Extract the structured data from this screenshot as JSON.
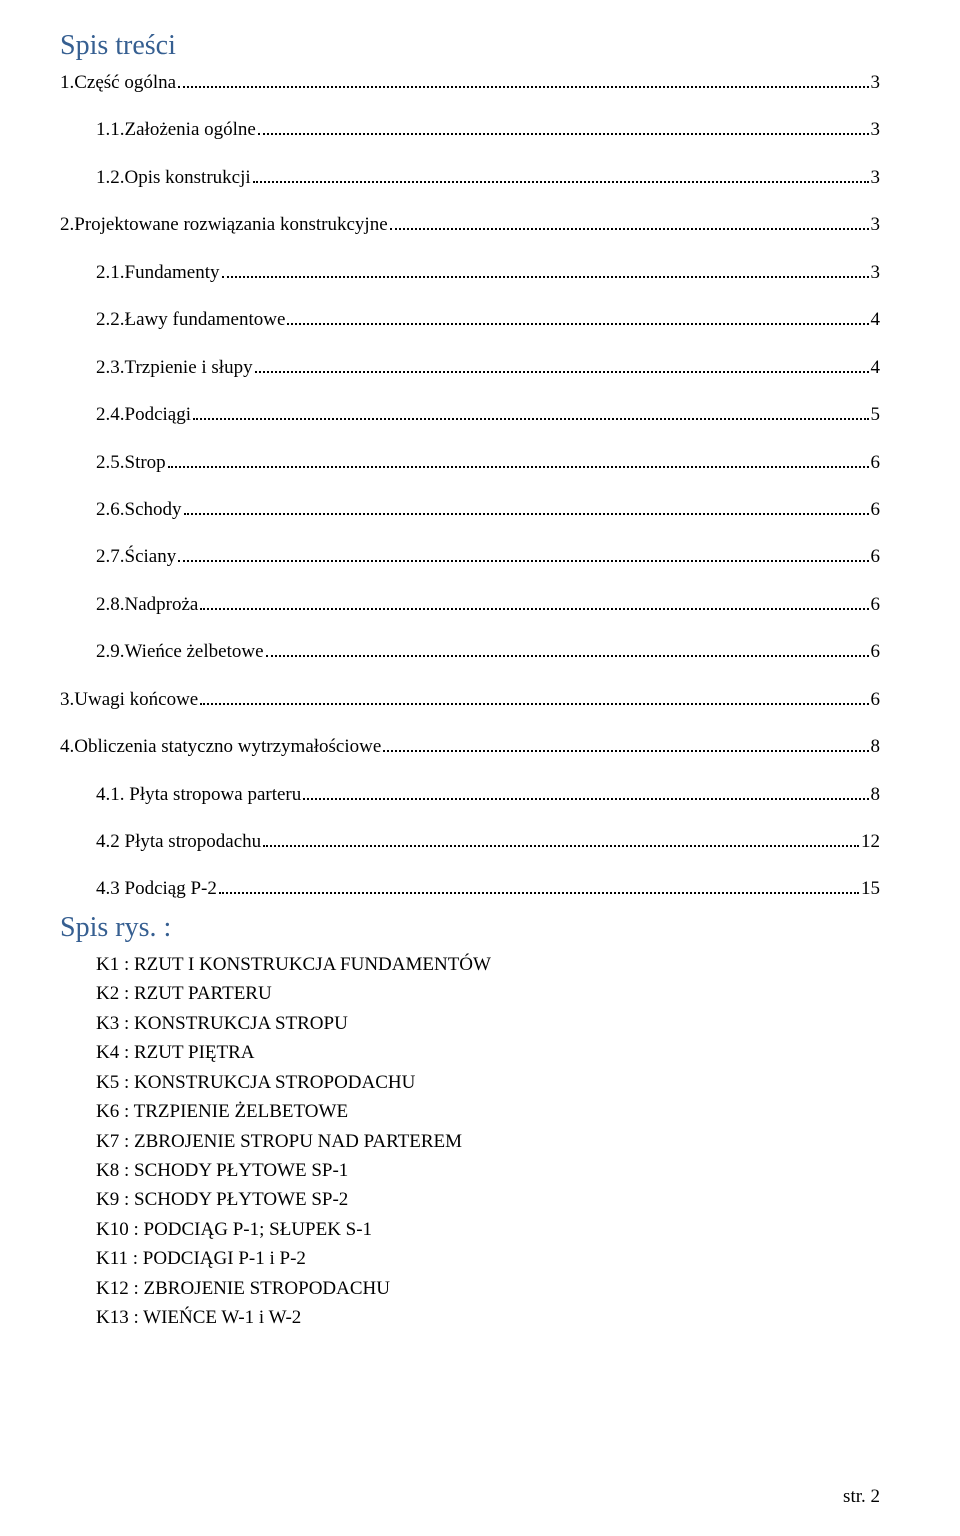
{
  "colors": {
    "heading": "#365f91",
    "text": "#000000",
    "background": "#ffffff",
    "dots": "#000000"
  },
  "typography": {
    "font_family": "Times New Roman",
    "body_fontsize_pt": 14,
    "heading_fontsize_pt": 21
  },
  "headings": {
    "toc": "Spis treści",
    "figures": "Spis rys. :"
  },
  "toc": [
    {
      "indent": 0,
      "label": "1.Część ogólna",
      "page": "3",
      "spacer_after": true
    },
    {
      "indent": 1,
      "label": "1.1.Założenia ogólne",
      "page": "3",
      "spacer_after": true
    },
    {
      "indent": 1,
      "label": "1.2.Opis konstrukcji",
      "page": "3",
      "spacer_after": true
    },
    {
      "indent": 0,
      "label": "2.Projektowane rozwiązania konstrukcyjne",
      "page": "3",
      "spacer_after": true
    },
    {
      "indent": 1,
      "label": "2.1.Fundamenty",
      "page": "3",
      "spacer_after": true
    },
    {
      "indent": 1,
      "label": "2.2.Ławy fundamentowe",
      "page": "4",
      "spacer_after": true
    },
    {
      "indent": 1,
      "label": "2.3.Trzpienie i słupy",
      "page": "4",
      "spacer_after": true
    },
    {
      "indent": 1,
      "label": "2.4.Podciągi",
      "page": "5",
      "spacer_after": true
    },
    {
      "indent": 1,
      "label": "2.5.Strop",
      "page": "6",
      "spacer_after": true
    },
    {
      "indent": 1,
      "label": "2.6.Schody",
      "page": "6",
      "spacer_after": true
    },
    {
      "indent": 1,
      "label": "2.7.Ściany",
      "page": "6",
      "spacer_after": true
    },
    {
      "indent": 1,
      "label": "2.8.Nadproża",
      "page": "6",
      "spacer_after": true
    },
    {
      "indent": 1,
      "label": "2.9.Wieńce  żelbetowe",
      "page": "6",
      "spacer_after": true
    },
    {
      "indent": 0,
      "label": "3.Uwagi  końcowe",
      "page": "6",
      "spacer_after": true
    },
    {
      "indent": 0,
      "label": "4.Obliczenia statyczno wytrzymałościowe",
      "page": "8",
      "spacer_after": true
    },
    {
      "indent": 1,
      "label": "4.1. Płyta stropowa parteru",
      "page": "8",
      "spacer_after": true
    },
    {
      "indent": 1,
      "label": "4.2 Płyta stropodachu",
      "page": "12",
      "spacer_after": true
    },
    {
      "indent": 1,
      "label": "4.3 Podciąg P-2",
      "page": "15",
      "spacer_after": false
    }
  ],
  "figures": [
    {
      "code": "K1",
      "text": "RZUT I KONSTRUKCJA FUNDAMENTÓW"
    },
    {
      "code": "K2",
      "text": "RZUT PARTERU"
    },
    {
      "code": "K3",
      "text": "KONSTRUKCJA STROPU"
    },
    {
      "code": "K4",
      "text": "RZUT PIĘTRA"
    },
    {
      "code": "K5",
      "text": "KONSTRUKCJA STROPODACHU"
    },
    {
      "code": "K6",
      "text": "TRZPIENIE ŻELBETOWE"
    },
    {
      "code": "K7",
      "text": "ZBROJENIE STROPU NAD PARTEREM"
    },
    {
      "code": "K8",
      "text": "SCHODY PŁYTOWE SP-1"
    },
    {
      "code": "K9",
      "text": "SCHODY PŁYTOWE SP-2"
    },
    {
      "code": "K10",
      "text": "PODCIĄG P-1; SŁUPEK S-1"
    },
    {
      "code": "K11",
      "text": "PODCIĄGI P-1 i P-2"
    },
    {
      "code": "K12",
      "text": "ZBROJENIE STROPODACHU"
    },
    {
      "code": "K13",
      "text": "WIEŃCE W-1 i W-2"
    }
  ],
  "page_number": "str. 2"
}
